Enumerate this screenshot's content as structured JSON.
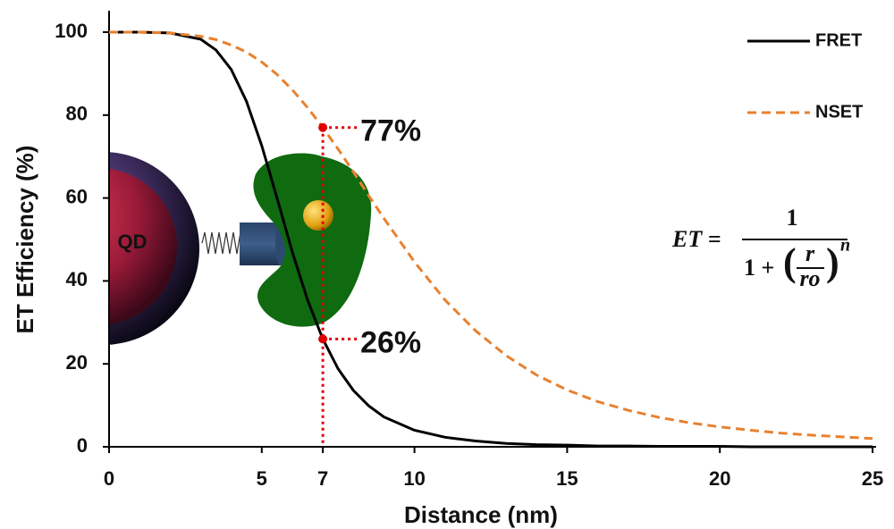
{
  "chart_data": {
    "type": "line",
    "x_label": "Distance (nm)",
    "y_label": "ET Efficiency (%)",
    "x": [
      0,
      1,
      2,
      3,
      3.5,
      4,
      4.5,
      5,
      5.5,
      6,
      6.5,
      7,
      7.5,
      8,
      8.5,
      9,
      10,
      11,
      12,
      13,
      14,
      15,
      16,
      17,
      18,
      19,
      20,
      21,
      22,
      23,
      24,
      25
    ],
    "series": [
      {
        "name": "FRET",
        "color": "#000000",
        "dash": false,
        "values": [
          100,
          100,
          99.8,
          98.3,
          95.7,
          91.0,
          83.3,
          72.6,
          60.0,
          47.0,
          35.4,
          26.0,
          18.8,
          13.6,
          9.9,
          7.2,
          4.0,
          2.3,
          1.4,
          0.8,
          0.5,
          0.4,
          0.2,
          0.2,
          0.1,
          0.1,
          0.1,
          0,
          0,
          0,
          0,
          0
        ]
      },
      {
        "name": "NSET",
        "color": "#e8812f",
        "dash": true,
        "values": [
          100,
          100,
          99.8,
          99.0,
          98.2,
          96.9,
          95.2,
          92.8,
          89.8,
          86.1,
          81.8,
          77.0,
          71.8,
          66.3,
          60.6,
          55.1,
          44.6,
          35.4,
          28.0,
          22.0,
          17.3,
          13.7,
          10.9,
          8.8,
          7.1,
          5.8,
          4.8,
          4.0,
          3.3,
          2.8,
          2.4,
          2.0
        ]
      }
    ],
    "xlim": [
      0,
      25
    ],
    "ylim": [
      0,
      100
    ],
    "xticks": [
      0,
      5,
      7,
      10,
      15,
      20,
      25
    ],
    "yticks": [
      0,
      20,
      40,
      60,
      80,
      100
    ],
    "grid": false,
    "legend": "top-right",
    "annotations": [
      {
        "x": 7,
        "y": 77,
        "label": "77%",
        "color": "#e00000"
      },
      {
        "x": 7,
        "y": 26,
        "label": "26%",
        "color": "#e00000"
      }
    ],
    "illustration_label": "QD",
    "equation": {
      "lhs": "ET =",
      "numerator": "1",
      "denominator": "1 +",
      "open": "(",
      "r": "r",
      "ro": "ro",
      "close": ")",
      "exponent": "n"
    }
  }
}
